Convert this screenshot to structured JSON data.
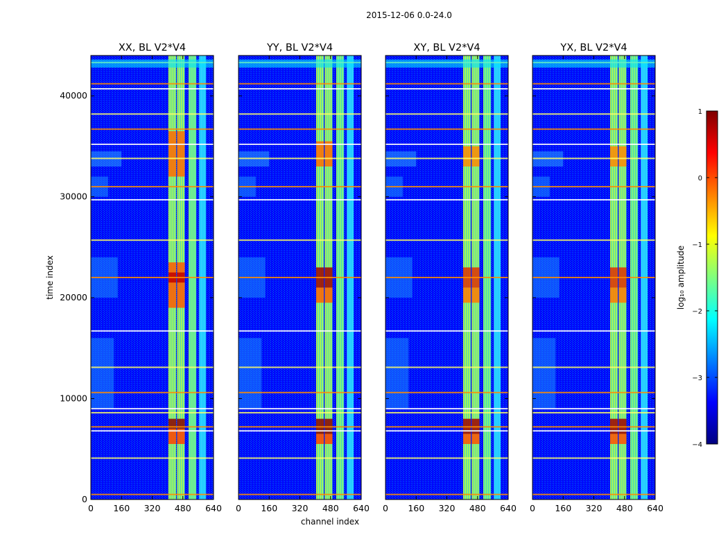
{
  "figure": {
    "suptitle": "2015-12-06 0.0-24.0",
    "xlabel": "channel index",
    "ylabel": "time index"
  },
  "colorbar": {
    "label": "log₁₀ amplitude",
    "range": [
      -4,
      1
    ],
    "ticks": [
      1,
      0,
      -1,
      -2,
      -3,
      -4
    ],
    "tick_labels": [
      "1",
      "0",
      "−1",
      "−2",
      "−3",
      "−4"
    ],
    "colormap": [
      "#00007f",
      "#0000ff",
      "#007fff",
      "#00ffff",
      "#7fff7f",
      "#ffff00",
      "#ff7f00",
      "#ff0000",
      "#7f0000"
    ]
  },
  "chart_data": {
    "type": "heatmap",
    "panels": [
      {
        "title": "XX, BL V2*V4",
        "show_yticklabels": true
      },
      {
        "title": "YY, BL V2*V4",
        "show_yticklabels": false
      },
      {
        "title": "XY, BL V2*V4",
        "show_yticklabels": false
      },
      {
        "title": "YX, BL V2*V4",
        "show_yticklabels": false
      }
    ],
    "xlim": [
      0,
      640
    ],
    "ylim": [
      0,
      44000
    ],
    "xticks": [
      0,
      160,
      320,
      480,
      640
    ],
    "xtick_labels": [
      "0",
      "160",
      "320",
      "480",
      "640"
    ],
    "yticks": [
      0,
      10000,
      20000,
      30000,
      40000
    ],
    "ytick_labels": [
      "0",
      "10000",
      "20000",
      "30000",
      "40000"
    ],
    "vertical_bright_bands_channels": [
      [
        405,
        445
      ],
      [
        450,
        490
      ],
      [
        510,
        550
      ],
      [
        565,
        600
      ]
    ],
    "horizontal_rfi_rows_time_index": [
      500,
      4100,
      6800,
      7200,
      8600,
      9000,
      10600,
      13100,
      16700,
      22000,
      25700,
      29700,
      31000,
      33800,
      35200,
      36700,
      38200,
      40700,
      41200,
      43300
    ]
  }
}
